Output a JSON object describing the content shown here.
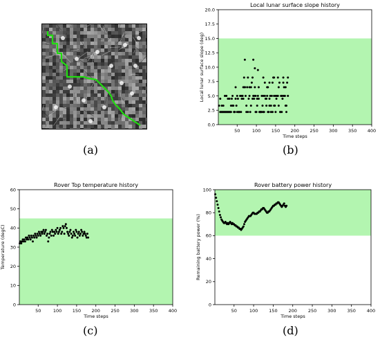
{
  "panel_labels": [
    "(a)",
    "(b)",
    "(c)",
    "(d)"
  ],
  "map": {
    "path_color": "#22dd11",
    "path": [
      [
        8,
        10
      ],
      [
        8,
        16
      ],
      [
        15,
        16
      ],
      [
        15,
        28
      ],
      [
        22,
        28
      ],
      [
        22,
        42
      ],
      [
        28,
        42
      ],
      [
        28,
        54
      ],
      [
        36,
        60
      ],
      [
        36,
        76
      ],
      [
        48,
        76
      ],
      [
        60,
        76
      ],
      [
        66,
        78
      ],
      [
        78,
        80
      ],
      [
        84,
        86
      ],
      [
        90,
        92
      ],
      [
        96,
        98
      ],
      [
        100,
        104
      ],
      [
        102,
        110
      ],
      [
        106,
        116
      ],
      [
        112,
        122
      ],
      [
        118,
        130
      ],
      [
        124,
        134
      ],
      [
        130,
        138
      ],
      [
        136,
        142
      ],
      [
        142,
        146
      ]
    ],
    "bright_spots": [
      [
        30,
        20
      ],
      [
        120,
        30
      ],
      [
        40,
        90
      ],
      [
        60,
        110
      ],
      [
        100,
        60
      ],
      [
        130,
        100
      ],
      [
        20,
        120
      ],
      [
        80,
        40
      ],
      [
        140,
        20
      ],
      [
        70,
        140
      ],
      [
        115,
        85
      ],
      [
        50,
        50
      ],
      [
        90,
        120
      ],
      [
        135,
        60
      ]
    ]
  },
  "chart_data": [
    {
      "type": "scatter",
      "title": "Local lunar surface slope history",
      "xlabel": "Time steps",
      "ylabel": "Local lunar surface slope (deg)",
      "xlim": [
        1,
        400
      ],
      "ylim": [
        0,
        20
      ],
      "xticks": [
        50,
        100,
        150,
        200,
        250,
        300,
        350,
        400
      ],
      "yticks": [
        0.0,
        2.5,
        5.0,
        7.5,
        10.0,
        12.5,
        15.0,
        17.5,
        20.0
      ],
      "ytick_labels": [
        "0.0",
        "2.5",
        "5.0",
        "7.5",
        "10.0",
        "12.5",
        "15.0",
        "17.5",
        "20.0"
      ],
      "grid": false,
      "safe_band": {
        "from": 0,
        "to": 15,
        "color": "#b3f5b0"
      },
      "point_color": "#000000",
      "x": [
        3,
        6,
        8,
        10,
        12,
        14,
        16,
        18,
        20,
        22,
        24,
        26,
        28,
        30,
        32,
        34,
        36,
        38,
        40,
        42,
        44,
        46,
        48,
        50,
        52,
        54,
        56,
        58,
        60,
        62,
        64,
        66,
        68,
        70,
        72,
        74,
        76,
        78,
        80,
        82,
        84,
        86,
        88,
        90,
        92,
        94,
        96,
        98,
        100,
        102,
        104,
        106,
        108,
        110,
        112,
        114,
        116,
        118,
        120,
        122,
        124,
        126,
        128,
        130,
        132,
        134,
        136,
        138,
        140,
        142,
        144,
        146,
        148,
        150,
        152,
        154,
        156,
        158,
        160,
        162,
        164,
        166,
        168,
        170,
        172,
        174,
        176,
        178,
        180,
        182,
        6,
        14,
        22,
        30,
        38,
        46,
        54,
        62,
        70,
        78,
        86,
        94,
        102,
        110,
        118,
        126,
        134,
        142,
        150,
        158,
        166,
        174,
        182,
        10,
        26,
        42,
        58,
        74,
        90,
        106,
        122,
        138,
        154,
        170,
        18,
        34,
        50,
        66,
        82,
        98,
        114,
        130,
        146,
        162,
        178,
        64,
        70,
        92,
        96,
        104,
        118,
        128,
        134,
        146,
        156,
        170,
        176
      ],
      "y": [
        3.3,
        2.2,
        2.2,
        3.3,
        2.2,
        2.2,
        2.2,
        2.2,
        2.2,
        2.2,
        2.2,
        4.5,
        2.2,
        2.2,
        2.2,
        2.2,
        4.5,
        5.0,
        3.3,
        2.2,
        2.2,
        4.5,
        3.3,
        5.0,
        4.5,
        2.2,
        2.2,
        5.0,
        2.2,
        4.5,
        5.0,
        6.5,
        8.2,
        6.5,
        5.0,
        3.3,
        6.5,
        8.2,
        4.5,
        5.0,
        2.2,
        6.5,
        7.3,
        8.2,
        5.0,
        4.5,
        6.5,
        2.2,
        2.2,
        3.3,
        5.0,
        4.5,
        2.2,
        2.2,
        2.2,
        2.2,
        3.3,
        2.2,
        2.2,
        5.0,
        4.5,
        3.3,
        5.0,
        2.2,
        2.2,
        4.5,
        5.0,
        3.3,
        5.0,
        7.3,
        8.2,
        5.0,
        3.3,
        2.2,
        4.5,
        5.0,
        5.0,
        6.5,
        7.3,
        2.2,
        5.0,
        5.0,
        4.5,
        8.2,
        6.5,
        5.0,
        3.3,
        2.2,
        7.3,
        8.2,
        4.5,
        3.3,
        5.0,
        4.5,
        3.3,
        6.5,
        2.2,
        5.0,
        6.5,
        2.2,
        3.3,
        5.0,
        4.5,
        2.2,
        5.0,
        4.5,
        3.3,
        2.2,
        5.0,
        3.3,
        2.2,
        5.0,
        5.0,
        2.2,
        2.2,
        2.2,
        5.0,
        2.2,
        4.5,
        6.5,
        7.3,
        2.2,
        5.0,
        5.0,
        5.0,
        3.3,
        2.2,
        4.5,
        6.5,
        5.0,
        5.0,
        6.5,
        3.3,
        2.2,
        3.3,
        5.0,
        11.3,
        11.3,
        9.8,
        9.5,
        8.2,
        6.5,
        7.3,
        8.2,
        8.2,
        7.3,
        6.5
      ]
    },
    {
      "type": "scatter",
      "title": "Rover Top temperature history",
      "xlabel": "Time steps",
      "ylabel": "Temperature (degC)",
      "xlim": [
        1,
        400
      ],
      "ylim": [
        0,
        60
      ],
      "xticks": [
        50,
        100,
        150,
        200,
        250,
        300,
        350,
        400
      ],
      "yticks": [
        0,
        10,
        20,
        30,
        40,
        50,
        60
      ],
      "ytick_labels": [
        "0",
        "10",
        "20",
        "30",
        "40",
        "50",
        "60"
      ],
      "grid": false,
      "safe_band": {
        "from": 0,
        "to": 45,
        "color": "#b3f5b0"
      },
      "point_color": "#000000",
      "x": [
        2,
        4,
        6,
        8,
        10,
        12,
        14,
        16,
        18,
        20,
        22,
        24,
        26,
        28,
        30,
        32,
        34,
        36,
        38,
        40,
        42,
        44,
        46,
        48,
        50,
        52,
        54,
        56,
        58,
        60,
        62,
        64,
        66,
        68,
        70,
        72,
        74,
        76,
        78,
        80,
        82,
        84,
        86,
        88,
        90,
        92,
        94,
        96,
        98,
        100,
        102,
        104,
        106,
        108,
        110,
        112,
        114,
        116,
        118,
        120,
        122,
        124,
        126,
        128,
        130,
        132,
        134,
        136,
        138,
        140,
        142,
        144,
        146,
        148,
        150,
        152,
        154,
        156,
        158,
        160,
        162,
        164,
        166,
        168,
        170,
        172,
        174,
        176,
        178,
        180
      ],
      "y": [
        32,
        33,
        32,
        33,
        34,
        33,
        34,
        33,
        35,
        34,
        35,
        34,
        36,
        35,
        34,
        36,
        35,
        33,
        36,
        35,
        37,
        36,
        35,
        37,
        36,
        38,
        37,
        36,
        38,
        37,
        38,
        39,
        37,
        38,
        39,
        36,
        37,
        33,
        35,
        37,
        38,
        36,
        39,
        38,
        36,
        38,
        37,
        39,
        38,
        40,
        37,
        38,
        39,
        40,
        37,
        38,
        41,
        40,
        37,
        41,
        42,
        40,
        38,
        37,
        36,
        38,
        39,
        37,
        35,
        36,
        38,
        37,
        36,
        39,
        38,
        35,
        37,
        38,
        36,
        37,
        39,
        38,
        36,
        37,
        38,
        37,
        36,
        35,
        37,
        35
      ]
    },
    {
      "type": "scatter",
      "title": "Rover battery power history",
      "xlabel": "Time steps",
      "ylabel": "Remaining battery power (%)",
      "xlim": [
        1,
        400
      ],
      "ylim": [
        0,
        100
      ],
      "xticks": [
        50,
        100,
        150,
        200,
        250,
        300,
        350,
        400
      ],
      "yticks": [
        0,
        20,
        40,
        60,
        80,
        100
      ],
      "ytick_labels": [
        "0",
        "20",
        "40",
        "60",
        "80",
        "100"
      ],
      "grid": false,
      "safe_band": {
        "from": 60,
        "to": 100,
        "color": "#b3f5b0"
      },
      "point_color": "#000000",
      "x": [
        2,
        4,
        6,
        8,
        10,
        12,
        14,
        16,
        18,
        20,
        22,
        24,
        26,
        28,
        30,
        32,
        34,
        36,
        38,
        40,
        42,
        44,
        46,
        48,
        50,
        52,
        54,
        56,
        58,
        60,
        62,
        64,
        66,
        68,
        70,
        72,
        74,
        76,
        78,
        80,
        82,
        84,
        86,
        88,
        90,
        92,
        94,
        96,
        98,
        100,
        102,
        104,
        106,
        108,
        110,
        112,
        114,
        116,
        118,
        120,
        122,
        124,
        126,
        128,
        130,
        132,
        134,
        136,
        138,
        140,
        142,
        144,
        146,
        148,
        150,
        152,
        154,
        156,
        158,
        160,
        162,
        164,
        166,
        168,
        170,
        172,
        174,
        176,
        178,
        180,
        182,
        184
      ],
      "y": [
        96,
        93,
        90,
        87,
        84,
        81,
        78,
        76,
        74,
        73,
        72,
        71,
        71,
        72,
        71,
        70,
        71,
        70,
        71,
        72,
        71,
        70,
        71,
        70,
        70,
        69,
        69,
        68,
        68,
        67,
        67,
        66,
        66,
        65,
        66,
        67,
        68,
        70,
        72,
        73,
        74,
        75,
        76,
        77,
        77,
        77,
        78,
        79,
        80,
        80,
        79,
        79,
        79,
        79,
        80,
        80,
        81,
        81,
        82,
        83,
        83,
        84,
        84,
        83,
        82,
        81,
        80,
        80,
        81,
        81,
        82,
        83,
        84,
        85,
        86,
        86,
        87,
        87,
        88,
        88,
        89,
        89,
        88,
        87,
        86,
        85,
        86,
        87,
        88,
        86,
        85,
        86
      ]
    }
  ]
}
